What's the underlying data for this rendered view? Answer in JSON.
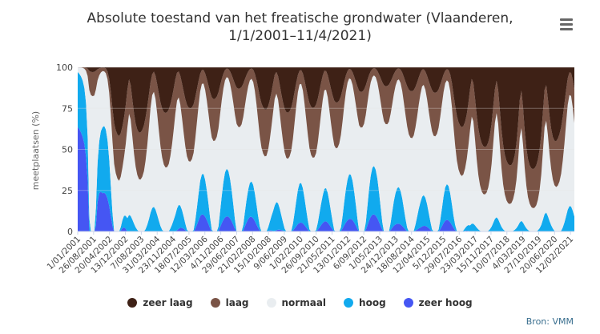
{
  "header": {
    "title_line1": "Absolute toestand van het freatische grondwater (Vlaanderen,",
    "title_line2": "1/1/2001–11/4/2021)",
    "menu_icon": "hamburger-menu-icon"
  },
  "credit": "Bron: VMM",
  "chart_data": {
    "type": "area",
    "stacked": true,
    "title": "Absolute toestand van het freatische grondwater (Vlaanderen, 1/1/2001–11/4/2021)",
    "ylabel": "meetplaatsen (%)",
    "xlabel": "",
    "ylim": [
      0,
      100
    ],
    "yticks": [
      0,
      25,
      50,
      75,
      100
    ],
    "xrange": [
      "2001-01-01",
      "2021-04-11"
    ],
    "xtick_labels": [
      "1/01/2001",
      "26/08/2001",
      "20/04/2002",
      "13/12/2002",
      "7/08/2003",
      "31/03/2004",
      "23/11/2004",
      "18/07/2005",
      "12/03/2006",
      "4/11/2006",
      "29/06/2007",
      "21/02/2008",
      "15/10/2008",
      "9/06/2009",
      "1/02/2010",
      "26/09/2010",
      "21/05/2011",
      "13/01/2012",
      "6/09/2012",
      "1/05/2013",
      "24/12/2013",
      "18/08/2014",
      "12/04/2015",
      "5/12/2015",
      "29/07/2016",
      "23/03/2017",
      "15/11/2017",
      "10/07/2018",
      "4/03/2019",
      "27/10/2019",
      "20/06/2020",
      "12/02/2021"
    ],
    "legend_position": "bottom",
    "series": [
      {
        "name": "zeer laag",
        "color": "#3e2116",
        "approx_percent_by_year": [
          [
            2001,
            0
          ],
          [
            2002,
            1
          ],
          [
            2003,
            40
          ],
          [
            2004,
            20
          ],
          [
            2005,
            18
          ],
          [
            2006,
            14
          ],
          [
            2007,
            8
          ],
          [
            2008,
            6
          ],
          [
            2009,
            22
          ],
          [
            2010,
            14
          ],
          [
            2011,
            16
          ],
          [
            2012,
            10
          ],
          [
            2013,
            6
          ],
          [
            2014,
            6
          ],
          [
            2015,
            10
          ],
          [
            2016,
            8
          ],
          [
            2017,
            35
          ],
          [
            2018,
            40
          ],
          [
            2019,
            55
          ],
          [
            2020,
            50
          ],
          [
            2021,
            20
          ]
        ]
      },
      {
        "name": "laag",
        "color": "#7a5446",
        "approx_percent_by_year": [
          [
            2001,
            0
          ],
          [
            2002,
            6
          ],
          [
            2003,
            28
          ],
          [
            2004,
            22
          ],
          [
            2005,
            30
          ],
          [
            2006,
            20
          ],
          [
            2007,
            14
          ],
          [
            2008,
            15
          ],
          [
            2009,
            25
          ],
          [
            2010,
            18
          ],
          [
            2011,
            25
          ],
          [
            2012,
            15
          ],
          [
            2013,
            12
          ],
          [
            2014,
            16
          ],
          [
            2015,
            22
          ],
          [
            2016,
            15
          ],
          [
            2017,
            30
          ],
          [
            2018,
            25
          ],
          [
            2019,
            22
          ],
          [
            2020,
            25
          ],
          [
            2021,
            25
          ]
        ]
      },
      {
        "name": "normaal",
        "color": "#e9edf0",
        "approx_percent_by_year": [
          [
            2001,
            6
          ],
          [
            2002,
            50
          ],
          [
            2003,
            30
          ],
          [
            2004,
            53
          ],
          [
            2005,
            48
          ],
          [
            2006,
            52
          ],
          [
            2007,
            60
          ],
          [
            2008,
            65
          ],
          [
            2009,
            48
          ],
          [
            2010,
            56
          ],
          [
            2011,
            50
          ],
          [
            2012,
            60
          ],
          [
            2013,
            62
          ],
          [
            2014,
            66
          ],
          [
            2015,
            60
          ],
          [
            2016,
            64
          ],
          [
            2017,
            34
          ],
          [
            2018,
            33
          ],
          [
            2019,
            22
          ],
          [
            2020,
            23
          ],
          [
            2021,
            50
          ]
        ]
      },
      {
        "name": "hoog",
        "color": "#11aaee",
        "approx_percent_by_year": [
          [
            2001,
            34
          ],
          [
            2002,
            28
          ],
          [
            2003,
            2
          ],
          [
            2004,
            5
          ],
          [
            2005,
            4
          ],
          [
            2006,
            10
          ],
          [
            2007,
            14
          ],
          [
            2008,
            10
          ],
          [
            2009,
            5
          ],
          [
            2010,
            10
          ],
          [
            2011,
            7
          ],
          [
            2012,
            12
          ],
          [
            2013,
            15
          ],
          [
            2014,
            10
          ],
          [
            2015,
            7
          ],
          [
            2016,
            10
          ],
          [
            2017,
            1
          ],
          [
            2018,
            2
          ],
          [
            2019,
            1
          ],
          [
            2020,
            2
          ],
          [
            2021,
            5
          ]
        ]
      },
      {
        "name": "zeer hoog",
        "color": "#4556f3",
        "approx_percent_by_year": [
          [
            2001,
            60
          ],
          [
            2002,
            15
          ],
          [
            2003,
            0
          ],
          [
            2004,
            0
          ],
          [
            2005,
            0
          ],
          [
            2006,
            4
          ],
          [
            2007,
            4
          ],
          [
            2008,
            4
          ],
          [
            2009,
            0
          ],
          [
            2010,
            2
          ],
          [
            2011,
            2
          ],
          [
            2012,
            3
          ],
          [
            2013,
            5
          ],
          [
            2014,
            2
          ],
          [
            2015,
            1
          ],
          [
            2016,
            3
          ],
          [
            2017,
            0
          ],
          [
            2018,
            0
          ],
          [
            2019,
            0
          ],
          [
            2020,
            0
          ],
          [
            2021,
            0
          ]
        ]
      }
    ]
  }
}
